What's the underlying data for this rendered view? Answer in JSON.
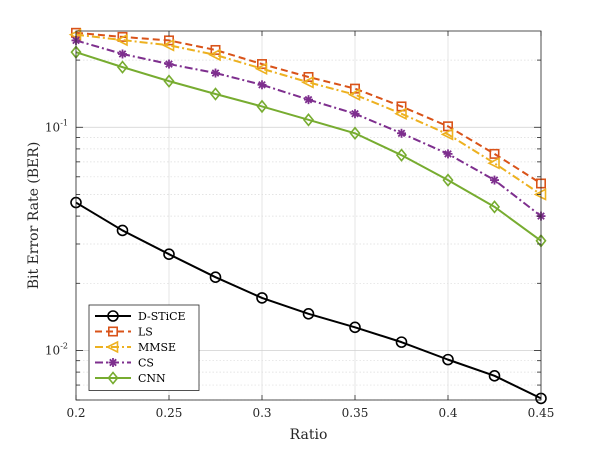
{
  "chart_data": {
    "type": "line",
    "xlabel": "Ratio",
    "ylabel": "Bit Error Rate (BER)",
    "x": [
      0.2,
      0.225,
      0.25,
      0.275,
      0.3,
      0.325,
      0.35,
      0.375,
      0.4,
      0.425,
      0.45
    ],
    "xlim": [
      0.2,
      0.45
    ],
    "ylim": [
      0.006,
      0.27
    ],
    "yscale": "log",
    "grid": true,
    "legend_position": "bottom-left",
    "x_ticks": [
      "0.2",
      "0.25",
      "0.3",
      "0.35",
      "0.4",
      "0.45"
    ],
    "y_ticks": [
      {
        "value": 0.01,
        "base": "10",
        "exp": "-2"
      },
      {
        "value": 0.1,
        "base": "10",
        "exp": "-1"
      }
    ],
    "series": [
      {
        "name": "D-STiCE",
        "color": "#000000",
        "dash": "solid",
        "marker": "circle",
        "values": [
          0.046,
          0.0345,
          0.027,
          0.0213,
          0.0172,
          0.0146,
          0.0127,
          0.0109,
          0.0091,
          0.0077,
          0.0061
        ]
      },
      {
        "name": "LS",
        "color": "#D95319",
        "dash": "dashed",
        "marker": "square",
        "values": [
          0.265,
          0.254,
          0.245,
          0.222,
          0.192,
          0.168,
          0.149,
          0.124,
          0.101,
          0.076,
          0.056
        ]
      },
      {
        "name": "MMSE",
        "color": "#EDB120",
        "dash": "dashdot",
        "marker": "triangle-left",
        "values": [
          0.26,
          0.246,
          0.233,
          0.211,
          0.183,
          0.159,
          0.14,
          0.115,
          0.093,
          0.069,
          0.05
        ]
      },
      {
        "name": "CS",
        "color": "#7E2F8E",
        "dash": "dashdot",
        "marker": "asterisk",
        "values": [
          0.245,
          0.213,
          0.192,
          0.175,
          0.155,
          0.133,
          0.115,
          0.094,
          0.076,
          0.058,
          0.04
        ]
      },
      {
        "name": "CNN",
        "color": "#77AC30",
        "dash": "solid",
        "marker": "diamond",
        "values": [
          0.217,
          0.186,
          0.161,
          0.141,
          0.124,
          0.108,
          0.094,
          0.075,
          0.058,
          0.044,
          0.031
        ]
      }
    ]
  }
}
